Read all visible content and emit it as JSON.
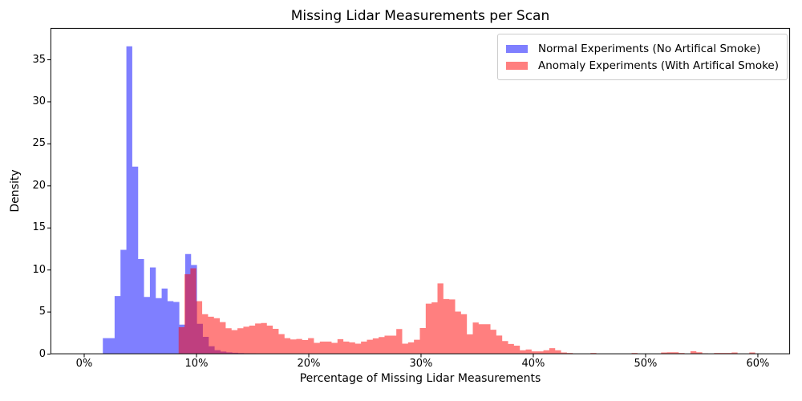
{
  "chart_data": {
    "type": "histogram",
    "title": "Missing Lidar Measurements per Scan",
    "xlabel": "Percentage of Missing Lidar Measurements",
    "ylabel": "Density",
    "grid": false,
    "background_color": "#ffffff",
    "axis_color": "#000000",
    "x_range": [
      -3.0,
      62.86
    ],
    "y_range": [
      0,
      38.77
    ],
    "x_ticks": [
      {
        "value": 0,
        "label": "0%"
      },
      {
        "value": 10,
        "label": "10%"
      },
      {
        "value": 20,
        "label": "20%"
      },
      {
        "value": 30,
        "label": "30%"
      },
      {
        "value": 40,
        "label": "40%"
      },
      {
        "value": 50,
        "label": "50%"
      },
      {
        "value": 60,
        "label": "60%"
      }
    ],
    "y_ticks": [
      {
        "value": 0,
        "label": "0"
      },
      {
        "value": 5,
        "label": "5"
      },
      {
        "value": 10,
        "label": "10"
      },
      {
        "value": 15,
        "label": "15"
      },
      {
        "value": 20,
        "label": "20"
      },
      {
        "value": 25,
        "label": "25"
      },
      {
        "value": 30,
        "label": "30"
      },
      {
        "value": 35,
        "label": "35"
      }
    ],
    "legend": {
      "position": "upper right",
      "entries": [
        {
          "label": "Normal Experiments (No Artifical Smoke)",
          "color": "#0000ff",
          "alpha": 0.5
        },
        {
          "label": "Anomaly Experiments (With Artifical Smoke)",
          "color": "#ff0000",
          "alpha": 0.5
        }
      ]
    },
    "series": [
      {
        "name": "Normal Experiments (No Artifical Smoke)",
        "color": "#0000ff",
        "alpha": 0.5,
        "bin_start_pct": 1.66,
        "bin_width_pct": 0.524,
        "densities": [
          1.9,
          1.9,
          6.9,
          12.4,
          36.6,
          22.3,
          11.3,
          6.8,
          10.3,
          6.65,
          7.8,
          6.3,
          6.2,
          3.5,
          11.9,
          10.6,
          3.6,
          2.05,
          0.93,
          0.46,
          0.3,
          0.2,
          0.15,
          0.12,
          0.1,
          0.08,
          0.05
        ]
      },
      {
        "name": "Anomaly Experiments (With Artifical Smoke)",
        "color": "#ff0000",
        "alpha": 0.5,
        "bin_start_pct": 8.41,
        "bin_width_pct": 0.524,
        "densities": [
          3.2,
          9.5,
          10.2,
          6.3,
          4.75,
          4.45,
          4.27,
          3.8,
          3.07,
          2.85,
          3.07,
          3.26,
          3.39,
          3.64,
          3.7,
          3.39,
          3.0,
          2.37,
          1.89,
          1.74,
          1.8,
          1.67,
          1.89,
          1.33,
          1.49,
          1.49,
          1.33,
          1.78,
          1.49,
          1.4,
          1.24,
          1.49,
          1.71,
          1.87,
          2.03,
          2.19,
          2.19,
          2.98,
          1.24,
          1.4,
          1.71,
          3.1,
          6.0,
          6.15,
          8.4,
          6.55,
          6.5,
          5.05,
          4.75,
          2.35,
          3.75,
          3.55,
          3.55,
          2.9,
          2.2,
          1.55,
          1.2,
          1.0,
          0.45,
          0.55,
          0.32,
          0.32,
          0.45,
          0.7,
          0.45,
          0.19,
          0.13,
          0,
          0,
          0,
          0.13,
          0,
          0,
          0,
          0,
          0,
          0,
          0.13,
          0,
          0,
          0,
          0,
          0.19,
          0.22,
          0.22,
          0.13,
          0,
          0.35,
          0.22,
          0.1,
          0,
          0.13,
          0.13,
          0.13,
          0.19,
          0,
          0,
          0.19
        ]
      }
    ]
  }
}
